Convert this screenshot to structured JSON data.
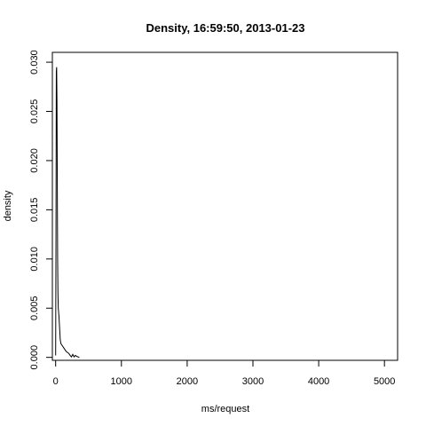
{
  "chart_data": {
    "type": "line",
    "title": "Density, 16:59:50, 2013-01-23",
    "xlabel": "ms/request",
    "ylabel": "density",
    "xlim": [
      -50,
      5200
    ],
    "ylim": [
      -0.0003,
      0.031
    ],
    "x_ticks": [
      0,
      1000,
      2000,
      3000,
      4000,
      5000
    ],
    "x_tick_labels": [
      "0",
      "1000",
      "2000",
      "3000",
      "4000",
      "5000"
    ],
    "y_ticks": [
      0.0,
      0.005,
      0.01,
      0.015,
      0.02,
      0.025,
      0.03
    ],
    "y_tick_labels": [
      "0.000",
      "0.005",
      "0.010",
      "0.015",
      "0.020",
      "0.025",
      "0.030"
    ],
    "grid": false,
    "series": [
      {
        "color": "#000000",
        "x": [
          0,
          5,
          10,
          15,
          20,
          25,
          30,
          35,
          40,
          50,
          60,
          70,
          80,
          100,
          120,
          140,
          160,
          180,
          200,
          220,
          240,
          260,
          280,
          300,
          320,
          340,
          360
        ],
        "y": [
          0.0002,
          0.012,
          0.029,
          0.0295,
          0.026,
          0.018,
          0.01,
          0.0065,
          0.005,
          0.0042,
          0.003,
          0.0018,
          0.0014,
          0.0012,
          0.001,
          0.0008,
          0.0006,
          0.0005,
          0.0004,
          0.0002,
          5e-05,
          0.0003,
          5e-05,
          0.0002,
          0.0001,
          5e-05,
          0.0
        ]
      }
    ]
  }
}
